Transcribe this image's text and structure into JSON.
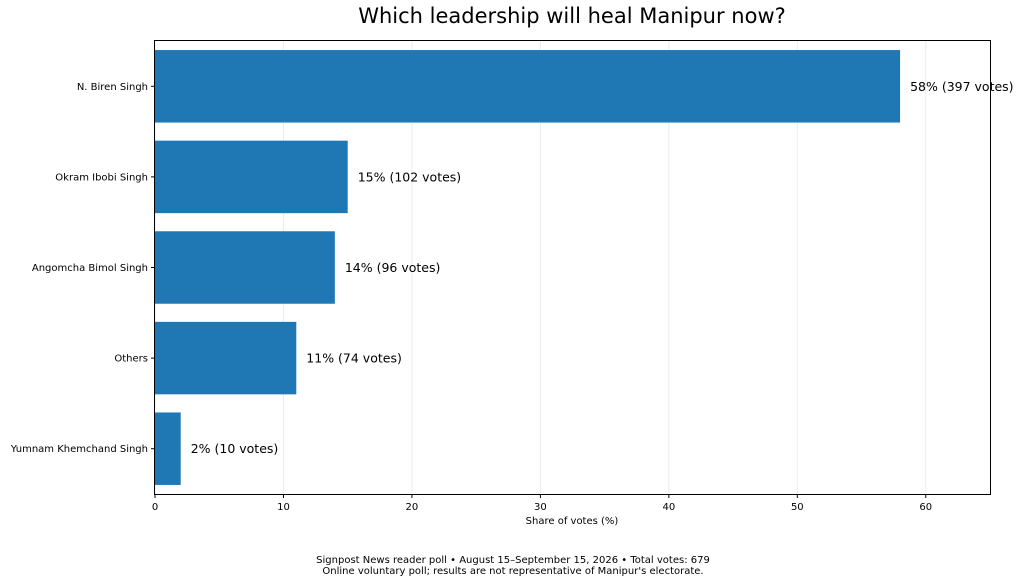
{
  "chart_data": {
    "type": "bar",
    "orientation": "horizontal",
    "title": "Which leadership will heal Manipur now?",
    "xlabel": "Share of votes (%)",
    "ylabel": "",
    "xlim": [
      0,
      65
    ],
    "xticks": [
      0,
      10,
      20,
      30,
      40,
      50,
      60
    ],
    "grid": true,
    "categories": [
      "N. Biren Singh",
      "Okram Ibobi Singh",
      "Angomcha Bimol Singh",
      "Others",
      "Yumnam Khemchand Singh"
    ],
    "values": [
      58,
      15,
      14,
      11,
      2
    ],
    "votes": [
      397,
      102,
      96,
      74,
      10
    ],
    "data_labels": [
      "58%  (397 votes)",
      "15%  (102 votes)",
      "14%  (96 votes)",
      "11%  (74 votes)",
      "2%  (10 votes)"
    ],
    "bar_color": "#1f77b4"
  },
  "footer": {
    "line1": "Signpost News reader poll • August 15–September 15, 2026 • Total votes: 679",
    "line2": "Online voluntary poll; results are not representative of Manipur's electorate."
  }
}
